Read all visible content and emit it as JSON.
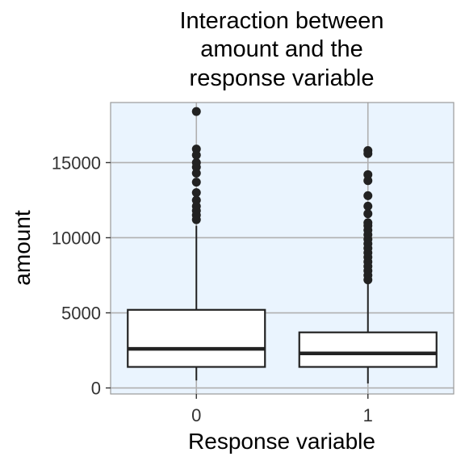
{
  "chart_data": {
    "type": "boxplot",
    "title": [
      "Interaction between",
      "amount and the",
      "response variable"
    ],
    "xlabel": "Response variable",
    "ylabel": "amount",
    "categories": [
      "0",
      "1"
    ],
    "yticks": [
      0,
      5000,
      10000,
      15000
    ],
    "ylim": [
      -400,
      19000
    ],
    "grid": true,
    "colors": {
      "panel": "#eaf4fe",
      "grid": "#b0b0b0",
      "box_fill": "#ffffff",
      "stroke": "#222222"
    },
    "boxes": [
      {
        "category": "0",
        "whisker_low": 500,
        "q1": 1400,
        "median": 2600,
        "q3": 5200,
        "whisker_high": 10800,
        "outliers": [
          11200,
          11500,
          11800,
          12100,
          12500,
          13000,
          13700,
          14300,
          14700,
          15000,
          15500,
          15900,
          18400
        ]
      },
      {
        "category": "1",
        "whisker_low": 300,
        "q1": 1400,
        "median": 2300,
        "q3": 3700,
        "whisker_high": 7000,
        "outliers": [
          7200,
          7500,
          7800,
          8100,
          8400,
          8700,
          9000,
          9300,
          9600,
          9900,
          10200,
          10500,
          10800,
          11000,
          11600,
          12100,
          12800,
          13800,
          14200,
          15600,
          15800
        ]
      }
    ]
  }
}
